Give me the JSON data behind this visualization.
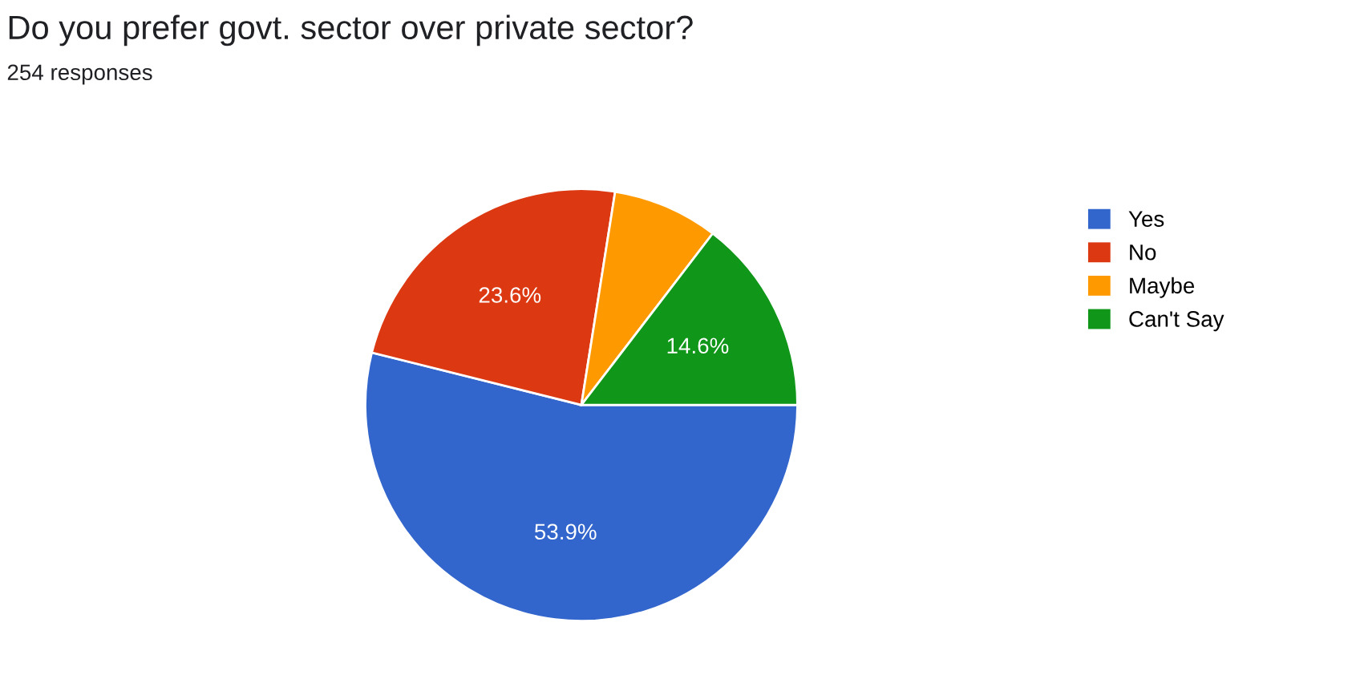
{
  "chart_data": {
    "type": "pie",
    "title": "Do you prefer govt. sector over private sector?",
    "subtitle": "254 responses",
    "categories": [
      "Yes",
      "No",
      "Maybe",
      "Can't Say"
    ],
    "values": [
      53.9,
      23.6,
      7.9,
      14.6
    ],
    "colors": [
      "#3366cc",
      "#dc3912",
      "#ff9900",
      "#109618"
    ],
    "value_labels": [
      "53.9%",
      "23.6%",
      null,
      "14.6%"
    ],
    "legend": "right"
  }
}
